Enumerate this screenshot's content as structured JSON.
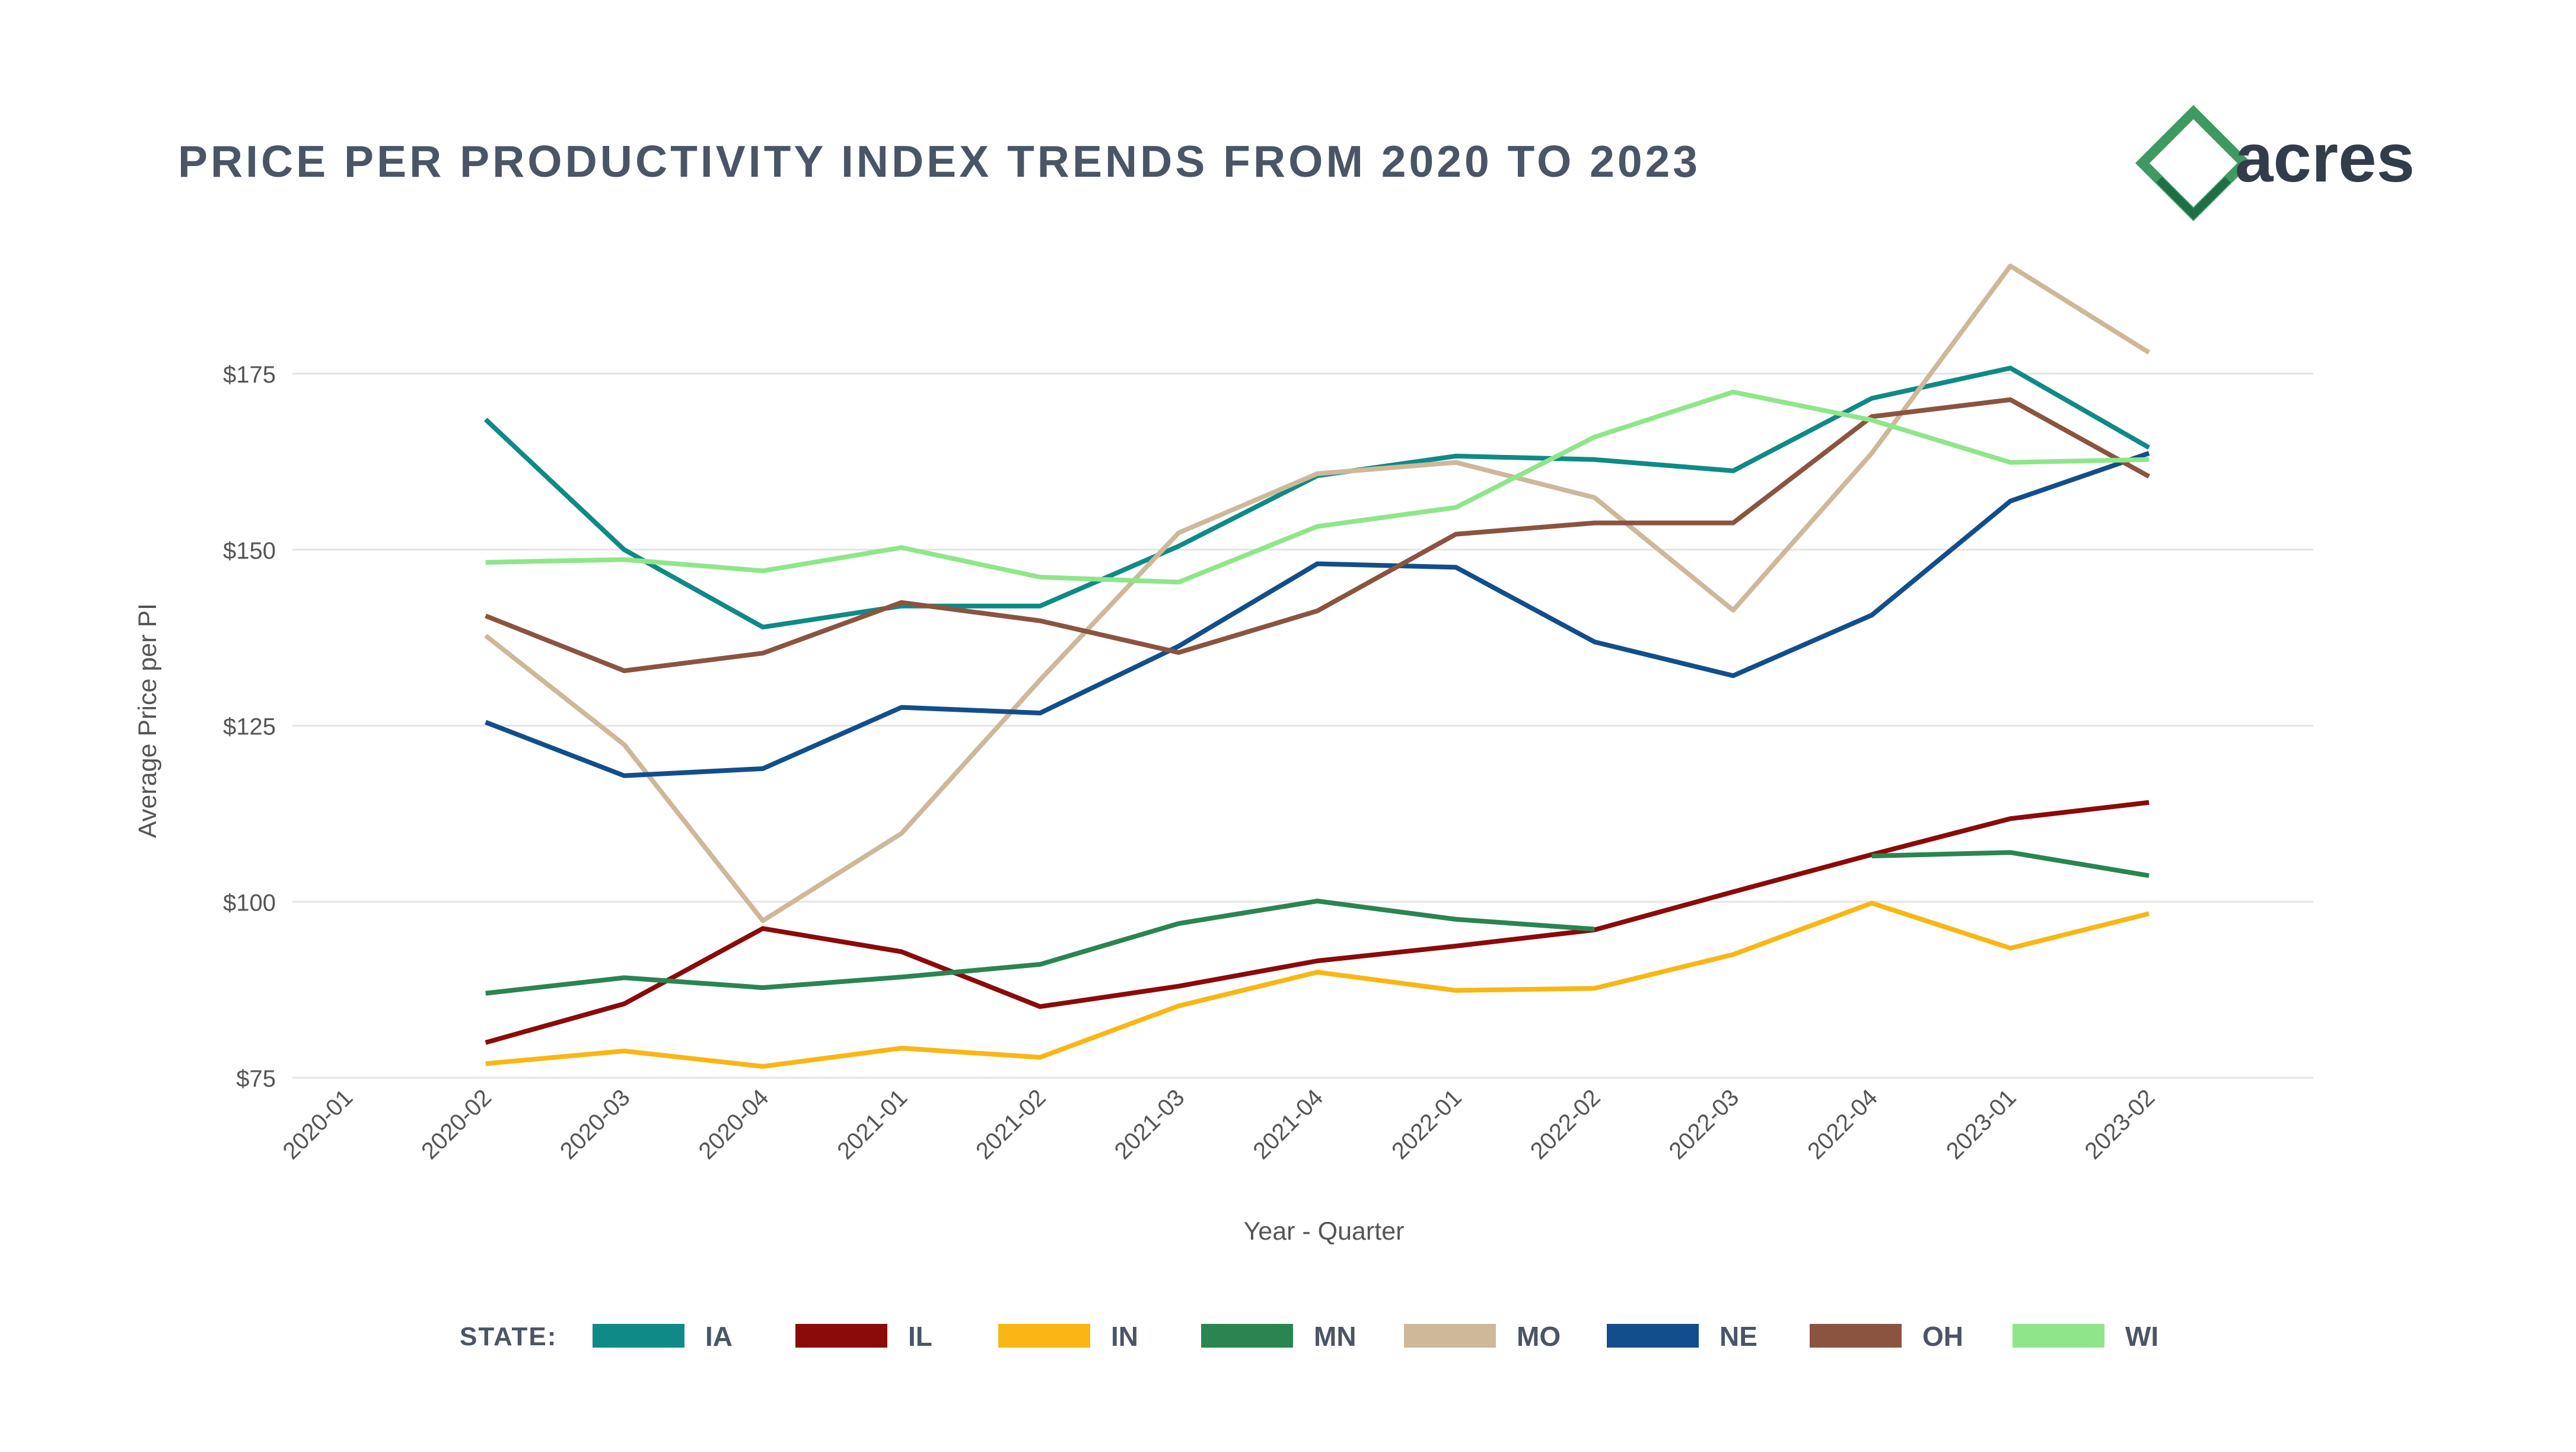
{
  "header": {
    "title": "PRICE PER PRODUCTIVITY INDEX TRENDS FROM 2020 TO 2023",
    "logo_text": "acres"
  },
  "colors": {
    "title": "#4a5566",
    "axis_text": "#555555",
    "grid": "#e4e4e4",
    "logo_green": "#3e9a62",
    "logo_dark": "#1f6e45",
    "logo_text": "#333d4a"
  },
  "legend": {
    "label": "STATE:"
  },
  "chart_data": {
    "type": "line",
    "xlabel": "Year - Quarter",
    "ylabel": "Average Price per PI",
    "categories": [
      "2020-01",
      "2020-02",
      "2020-03",
      "2020-04",
      "2021-01",
      "2021-02",
      "2021-03",
      "2021-04",
      "2022-01",
      "2022-02",
      "2022-03",
      "2022-04",
      "2023-01",
      "2023-02"
    ],
    "ylim": [
      75,
      190
    ],
    "yticks": [
      75,
      100,
      125,
      150,
      175
    ],
    "ytick_labels": [
      "$75",
      "$100",
      "$125",
      "$150",
      "$175"
    ],
    "grid": true,
    "legend_position": "bottom",
    "series": [
      {
        "name": "IA",
        "color": "#0f8a86",
        "values": [
          null,
          168.5,
          150,
          139,
          142,
          142,
          150.5,
          160.5,
          163.3,
          162.8,
          161.2,
          171.5,
          175.8,
          164.5
        ]
      },
      {
        "name": "IL",
        "color": "#8b0a0a",
        "values": [
          null,
          80,
          85.5,
          96.2,
          92.9,
          85.1,
          88,
          91.6,
          93.7,
          96,
          101.4,
          106.7,
          111.8,
          114.1
        ]
      },
      {
        "name": "IN",
        "color": "#f9b614",
        "values": [
          null,
          77,
          78.8,
          76.6,
          79.2,
          77.9,
          85.2,
          90,
          87.4,
          87.7,
          92.5,
          99.8,
          93.4,
          98.3
        ]
      },
      {
        "name": "MN",
        "color": "#2a8551",
        "values": [
          null,
          87,
          89.2,
          87.8,
          89.3,
          91.1,
          96.9,
          100.1,
          97.5,
          96.1,
          null,
          106.5,
          107,
          103.7
        ]
      },
      {
        "name": "MO",
        "color": "#cdb89a",
        "values": [
          null,
          137.8,
          122.3,
          97.3,
          109.7,
          131.5,
          152.4,
          160.8,
          162.4,
          157.4,
          141.4,
          163.7,
          190.3,
          178
        ]
      },
      {
        "name": "NE",
        "color": "#134e8c",
        "values": [
          null,
          125.5,
          117.9,
          118.9,
          127.6,
          126.8,
          136.3,
          148,
          147.5,
          136.9,
          132.1,
          140.7,
          156.9,
          163.7
        ]
      },
      {
        "name": "OH",
        "color": "#8b5440",
        "values": [
          null,
          140.6,
          132.8,
          135.3,
          142.5,
          139.9,
          135.4,
          141.3,
          152.2,
          153.8,
          153.8,
          168.9,
          171.3,
          160.4
        ]
      },
      {
        "name": "WI",
        "color": "#8fe68a",
        "values": [
          null,
          148.2,
          148.6,
          147,
          150.3,
          146.1,
          145.4,
          153.3,
          156,
          166,
          172.4,
          168.4,
          162.4,
          162.8
        ]
      }
    ]
  }
}
